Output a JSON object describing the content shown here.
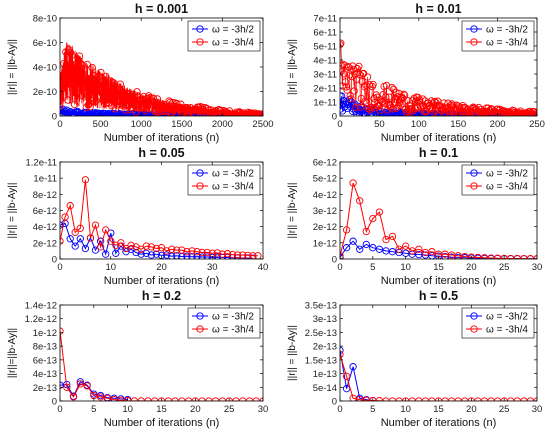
{
  "figure": {
    "layout": {
      "rows": 3,
      "cols": 2
    }
  },
  "chart_data": [
    {
      "type": "line",
      "title": "h = 0.001",
      "xlabel": "Number of iterations (n)",
      "ylabel": "||r|| = ||b-Ay||",
      "xlim": [
        0,
        2500
      ],
      "ylim": [
        0,
        8e-10
      ],
      "xticks": [
        0,
        500,
        1000,
        1500,
        2000,
        2500
      ],
      "yticks": [
        0,
        2e-10,
        4e-10,
        6e-10,
        8e-10
      ],
      "xticklabels": [
        "0",
        "500",
        "1000",
        "1500",
        "2000",
        "2500"
      ],
      "yticklabels": [
        "0",
        "2e-10",
        "4e-10",
        "6e-10",
        "8e-10"
      ],
      "legend_position": "top-right",
      "noisy": true,
      "series": [
        {
          "name": "ω = -3h/2",
          "color": "#0000ff",
          "count": 2500,
          "envelope": [
            [
              0,
              6e-11
            ],
            [
              300,
              3e-11
            ],
            [
              1000,
              1.5e-11
            ],
            [
              2500,
              5e-12
            ]
          ]
        },
        {
          "name": "ω = -3h/4",
          "color": "#ff0000",
          "count": 2500,
          "envelope": [
            [
              0,
              3.5e-10
            ],
            [
              80,
              6.2e-10
            ],
            [
              150,
              5.8e-10
            ],
            [
              300,
              4.5e-10
            ],
            [
              500,
              3.8e-10
            ],
            [
              800,
              2.5e-10
            ],
            [
              1000,
              1.8e-10
            ],
            [
              1500,
              1e-10
            ],
            [
              2000,
              5e-11
            ],
            [
              2500,
              2e-11
            ]
          ]
        }
      ]
    },
    {
      "type": "line",
      "title": "h = 0.01",
      "xlabel": "Number of iterations (n)",
      "ylabel": "||r|| = ||b-Ay||",
      "xlim": [
        0,
        250
      ],
      "ylim": [
        0,
        7e-11
      ],
      "xticks": [
        0,
        50,
        100,
        150,
        200,
        250
      ],
      "yticks": [
        0,
        1e-11,
        2e-11,
        3e-11,
        4e-11,
        5e-11,
        6e-11,
        7e-11
      ],
      "xticklabels": [
        "0",
        "50",
        "100",
        "150",
        "200",
        "250"
      ],
      "yticklabels": [
        "0",
        "1e-11",
        "2e-11",
        "3e-11",
        "4e-11",
        "5e-11",
        "6e-11",
        "7e-11"
      ],
      "legend_position": "top-right",
      "noisy": true,
      "series": [
        {
          "name": "ω = -3h/2",
          "color": "#0000ff",
          "count": 250,
          "envelope": [
            [
              0,
              1.5e-11
            ],
            [
              10,
              1.4e-11
            ],
            [
              30,
              6e-12
            ],
            [
              60,
              3e-12
            ],
            [
              150,
              1e-12
            ],
            [
              250,
              5e-13
            ]
          ]
        },
        {
          "name": "ω = -3h/4",
          "color": "#ff0000",
          "count": 250,
          "envelope": [
            [
              0,
              5.8e-11
            ],
            [
              5,
              4.2e-11
            ],
            [
              15,
              4.2e-11
            ],
            [
              30,
              3.2e-11
            ],
            [
              50,
              2.4e-11
            ],
            [
              100,
              1.3e-11
            ],
            [
              150,
              8e-12
            ],
            [
              200,
              5e-12
            ],
            [
              250,
              3e-12
            ]
          ]
        }
      ]
    },
    {
      "type": "line",
      "title": "h = 0.05",
      "xlabel": "Number of iterations (n)",
      "ylabel": "||r|| = ||b-Ay||",
      "xlim": [
        0,
        40
      ],
      "ylim": [
        0,
        1.2e-11
      ],
      "xticks": [
        0,
        10,
        20,
        30,
        40
      ],
      "yticks": [
        0,
        2e-12,
        4e-12,
        6e-12,
        8e-12,
        1e-11,
        1.2e-11
      ],
      "xticklabels": [
        "0",
        "10",
        "20",
        "30",
        "40"
      ],
      "yticklabels": [
        "0",
        "2e-12",
        "4e-12",
        "6e-12",
        "8e-12",
        "1e-11",
        "1.2e-11"
      ],
      "legend_position": "top-right",
      "series": [
        {
          "name": "ω = -3h/2",
          "color": "#0000ff",
          "x": [
            0,
            1,
            2,
            3,
            4,
            5,
            6,
            7,
            8,
            9,
            10,
            11,
            12,
            13,
            14,
            15,
            16,
            17,
            18,
            19,
            20,
            21,
            22,
            23,
            24,
            25,
            26,
            27,
            28,
            29,
            30,
            31,
            32,
            33,
            34,
            35,
            36,
            37,
            38
          ],
          "y": [
            4.2e-12,
            4.4e-12,
            2.5e-12,
            1.6e-12,
            2.5e-12,
            1.3e-12,
            2.6e-12,
            1.1e-12,
            2.2e-12,
            6e-13,
            3.2e-12,
            7e-13,
            1.6e-12,
            9e-13,
            1.2e-12,
            8e-13,
            6e-13,
            7e-13,
            5e-13,
            6e-13,
            4.5e-13,
            5e-13,
            3.5e-13,
            4e-13,
            3e-13,
            3.5e-13,
            2.8e-13,
            3e-13,
            2.5e-13,
            2.5e-13,
            2e-13,
            2.2e-13,
            1.8e-13,
            1.8e-13,
            1.5e-13,
            1.5e-13,
            1.2e-13,
            1.2e-13,
            1e-13
          ]
        },
        {
          "name": "ω = -3h/4",
          "color": "#ff0000",
          "x": [
            0,
            1,
            2,
            3,
            4,
            5,
            6,
            7,
            8,
            9,
            10,
            11,
            12,
            13,
            14,
            15,
            16,
            17,
            18,
            19,
            20,
            21,
            22,
            23,
            24,
            25,
            26,
            27,
            28,
            29,
            30,
            31,
            32,
            33,
            34,
            35,
            36,
            37,
            38,
            39
          ],
          "y": [
            2.2e-12,
            5.2e-12,
            6.6e-12,
            3.3e-12,
            3.8e-12,
            9.8e-12,
            2.6e-12,
            4.2e-12,
            1.5e-12,
            3.6e-12,
            2.2e-12,
            1.7e-12,
            2e-12,
            1.3e-12,
            1.7e-12,
            1.5e-12,
            1.2e-12,
            1.6e-12,
            1.5e-12,
            1.3e-12,
            1.4e-12,
            1e-12,
            1.2e-12,
            1.1e-12,
            1.1e-12,
            9e-13,
            1e-12,
            9e-13,
            8e-13,
            8e-13,
            7e-13,
            7.5e-13,
            6e-13,
            6.5e-13,
            5.5e-13,
            5e-13,
            5e-13,
            4.5e-13,
            4e-13,
            4e-13
          ]
        }
      ]
    },
    {
      "type": "line",
      "title": "h = 0.1",
      "xlabel": "Number of iterations (n)",
      "ylabel": "||r|| = ||b-Ay||",
      "xlim": [
        0,
        30
      ],
      "ylim": [
        0,
        6e-12
      ],
      "xticks": [
        0,
        5,
        10,
        15,
        20,
        25,
        30
      ],
      "yticks": [
        0,
        1e-12,
        2e-12,
        3e-12,
        4e-12,
        5e-12,
        6e-12
      ],
      "xticklabels": [
        "0",
        "5",
        "10",
        "15",
        "20",
        "25",
        "30"
      ],
      "yticklabels": [
        "0",
        "1e-12",
        "2e-12",
        "3e-12",
        "4e-12",
        "5e-12",
        "6e-12"
      ],
      "legend_position": "top-right",
      "series": [
        {
          "name": "ω = -3h/2",
          "color": "#0000ff",
          "x": [
            0,
            1,
            2,
            3,
            4,
            5,
            6,
            7,
            8,
            9,
            10,
            11,
            12,
            13,
            14,
            15,
            16,
            17,
            18,
            19,
            20,
            21,
            22,
            23,
            24,
            25,
            26,
            27,
            28,
            29,
            30
          ],
          "y": [
            1e-13,
            7e-13,
            1.1e-12,
            6e-13,
            9e-13,
            7e-13,
            6e-13,
            5e-13,
            4.5e-13,
            4e-13,
            3.5e-13,
            3e-13,
            2.8e-13,
            2.5e-13,
            2e-13,
            1.8e-13,
            1.5e-13,
            1.2e-13,
            1e-13,
            8e-14,
            6e-14,
            5e-14,
            4e-14,
            3e-14,
            3e-14,
            2e-14,
            2e-14,
            2e-14,
            1e-14,
            1e-14,
            1e-14
          ]
        },
        {
          "name": "ω = -3h/4",
          "color": "#ff0000",
          "x": [
            0,
            1,
            2,
            3,
            4,
            5,
            6,
            7,
            8,
            9,
            10,
            11,
            12,
            13,
            14,
            15,
            16,
            17,
            18,
            19,
            20,
            21,
            22,
            23,
            24,
            25,
            26,
            27,
            28,
            29,
            30
          ],
          "y": [
            2e-13,
            1.8e-12,
            4.7e-12,
            3.6e-12,
            1.7e-12,
            2.5e-12,
            2.9e-12,
            1.2e-12,
            1.4e-12,
            6e-13,
            8e-13,
            5e-13,
            6e-13,
            4e-13,
            4.5e-13,
            3e-13,
            3e-13,
            2.5e-13,
            2e-13,
            1.5e-13,
            1.2e-13,
            1e-13,
            8e-14,
            6e-14,
            5e-14,
            4e-14,
            3e-14,
            3e-14,
            2e-14,
            2e-14,
            2e-14
          ]
        }
      ]
    },
    {
      "type": "line",
      "title": "h = 0.2",
      "xlabel": "Number of iterations (n)",
      "ylabel": "||r||=||b-Ay||",
      "xlim": [
        0,
        30
      ],
      "ylim": [
        0,
        1.4e-12
      ],
      "xticks": [
        0,
        5,
        10,
        15,
        20,
        25,
        30
      ],
      "yticks": [
        0,
        2e-13,
        4e-13,
        6e-13,
        8e-13,
        1e-12,
        1.2e-12,
        1.4e-12
      ],
      "xticklabels": [
        "0",
        "5",
        "10",
        "15",
        "20",
        "25",
        "30"
      ],
      "yticklabels": [
        "0",
        "2e-13",
        "4e-13",
        "6e-13",
        "8e-13",
        "1e-12",
        "1.2e-12",
        "1.4e-12"
      ],
      "legend_position": "top-right",
      "series": [
        {
          "name": "ω = -3h/2",
          "color": "#0000ff",
          "x": [
            0,
            1,
            2,
            3,
            4,
            5,
            6,
            7,
            8,
            9,
            10
          ],
          "y": [
            2.3e-13,
            2.4e-13,
            7e-14,
            2.8e-13,
            2.3e-13,
            1e-13,
            8e-14,
            5e-14,
            4e-14,
            3e-14,
            2e-14
          ]
        },
        {
          "name": "ω = -3h/4",
          "color": "#ff0000",
          "x": [
            0,
            1,
            2,
            3,
            4,
            5,
            6,
            7,
            8,
            9,
            10,
            11,
            12,
            13,
            14,
            15,
            16,
            17,
            18,
            19,
            20,
            21,
            22,
            23,
            24,
            25,
            26,
            27,
            28,
            29,
            30
          ],
          "y": [
            1.02e-12,
            2e-13,
            6e-14,
            2.5e-13,
            2.2e-13,
            8e-14,
            6e-14,
            4e-14,
            2e-14,
            1e-14,
            5e-15,
            2e-15,
            1e-15,
            1e-15,
            0,
            0,
            0,
            0,
            0,
            0,
            0,
            0,
            0,
            0,
            0,
            0,
            0,
            0,
            0,
            0,
            0
          ]
        }
      ]
    },
    {
      "type": "line",
      "title": "h = 0.5",
      "xlabel": "Number of iterations (n)",
      "ylabel": "||r|| = ||b-Ay||",
      "xlim": [
        0,
        30
      ],
      "ylim": [
        0,
        3.5e-13
      ],
      "xticks": [
        0,
        5,
        10,
        15,
        20,
        25,
        30
      ],
      "yticks": [
        0,
        5e-14,
        1e-13,
        1.5e-13,
        2e-13,
        2.5e-13,
        3e-13,
        3.5e-13
      ],
      "xticklabels": [
        "0",
        "5",
        "10",
        "15",
        "20",
        "25",
        "30"
      ],
      "yticklabels": [
        "0",
        "5e-14",
        "1e-13",
        "1.5e-13",
        "2e-13",
        "2.5e-13",
        "3e-13",
        "3.5e-13"
      ],
      "legend_position": "top-right",
      "series": [
        {
          "name": "ω = -3h/2",
          "color": "#0000ff",
          "x": [
            0,
            1,
            2,
            3,
            4,
            5
          ],
          "y": [
            1.85e-13,
            4.5e-14,
            1.25e-13,
            1e-14,
            5e-15,
            2e-15
          ]
        },
        {
          "name": "ω = -3h/4",
          "color": "#ff0000",
          "x": [
            0,
            1,
            2,
            3,
            4,
            5,
            6,
            7,
            8,
            9,
            10,
            11,
            12,
            13,
            14,
            15,
            16,
            17,
            18,
            19,
            20,
            21,
            22,
            23,
            24,
            25,
            26,
            27,
            28,
            29,
            30
          ],
          "y": [
            1.7e-13,
            9e-14,
            1e-14,
            5e-15,
            3e-15,
            2e-15,
            1e-15,
            0,
            0,
            0,
            0,
            0,
            0,
            0,
            0,
            0,
            0,
            0,
            0,
            0,
            0,
            0,
            0,
            0,
            0,
            0,
            0,
            0,
            0,
            0,
            0
          ]
        }
      ]
    }
  ]
}
